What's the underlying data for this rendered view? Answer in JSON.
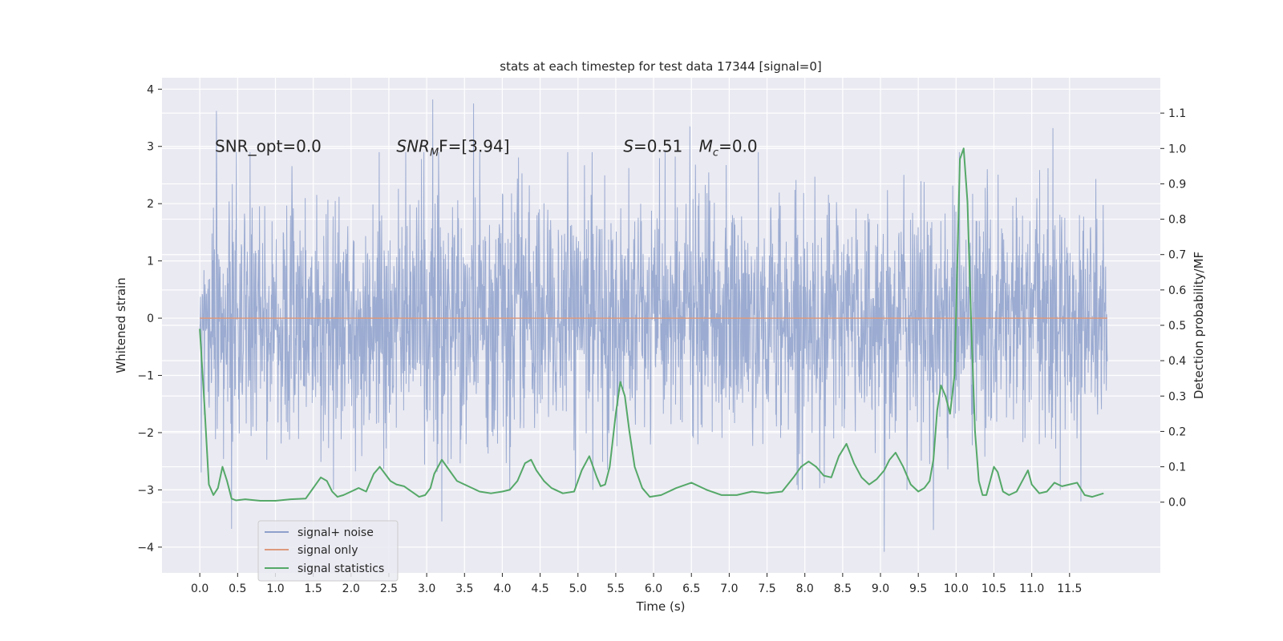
{
  "chart_data": {
    "type": "line",
    "title": "stats at each timestep for test data 17344 [signal=0]",
    "xlabel": "Time (s)",
    "ylabel_left": "Whitened strain",
    "ylabel_right": "Detection probability/MF",
    "xlim": [
      -0.5,
      12.7
    ],
    "ylim_left": [
      -4.45,
      4.2
    ],
    "ylim_right": [
      -0.2,
      1.2
    ],
    "x_ticks": [
      0.0,
      0.5,
      1.0,
      1.5,
      2.0,
      2.5,
      3.0,
      3.5,
      4.0,
      4.5,
      5.0,
      5.5,
      6.0,
      6.5,
      7.0,
      7.5,
      8.0,
      8.5,
      9.0,
      9.5,
      10.0,
      10.5,
      11.0,
      11.5
    ],
    "x_tick_labels": [
      "0.0",
      "0.5",
      "1.0",
      "1.5",
      "2.0",
      "2.5",
      "3.0",
      "3.5",
      "4.0",
      "4.5",
      "5.0",
      "5.5",
      "6.0",
      "6.5",
      "7.0",
      "7.5",
      "8.0",
      "8.5",
      "9.0",
      "9.5",
      "10.0",
      "10.5",
      "11.0",
      "11.5"
    ],
    "y_ticks_left": [
      -4,
      -3,
      -2,
      -1,
      0,
      1,
      2,
      3,
      4
    ],
    "y_tick_labels_left": [
      "−4",
      "−3",
      "−2",
      "−1",
      "0",
      "1",
      "2",
      "3",
      "4"
    ],
    "y_ticks_right": [
      0.0,
      0.1,
      0.2,
      0.3,
      0.4,
      0.5,
      0.6,
      0.7,
      0.8,
      0.9,
      1.0,
      1.1
    ],
    "y_tick_labels_right": [
      "0.0",
      "0.1",
      "0.2",
      "0.3",
      "0.4",
      "0.5",
      "0.6",
      "0.7",
      "0.8",
      "0.9",
      "1.0",
      "1.1"
    ],
    "grid": true,
    "legend_position": "lower-left",
    "annotations": [
      "SNR_opt=0.0",
      "SNR",
      "M",
      "F=[3.94]",
      "S",
      "=0.51",
      "M",
      "c",
      "=0.0"
    ],
    "annotation_positions": [
      0.2,
      2.6,
      5.6,
      6.6
    ],
    "series": [
      {
        "name": "signal+ noise",
        "axis": "left",
        "color": "#8da0cb",
        "style": "noise",
        "x_range": [
          0.0,
          12.0
        ],
        "y_range": [
          -4.1,
          3.85
        ],
        "peaks": [
          {
            "x": 0.22,
            "y": 3.62
          },
          {
            "x": 3.08,
            "y": 3.82
          },
          {
            "x": 3.62,
            "y": 3.75
          },
          {
            "x": 6.48,
            "y": 3.35
          },
          {
            "x": 11.28,
            "y": 3.32
          },
          {
            "x": 0.42,
            "y": -3.68
          },
          {
            "x": 3.2,
            "y": -3.55
          },
          {
            "x": 9.05,
            "y": -4.08
          },
          {
            "x": 9.7,
            "y": -3.7
          },
          {
            "x": 11.65,
            "y": -3.2
          }
        ]
      },
      {
        "name": "signal only",
        "axis": "left",
        "color": "#dd9a7e",
        "x": [
          0.0,
          12.0
        ],
        "y": [
          0.0,
          0.0
        ]
      },
      {
        "name": "signal statistics",
        "axis": "right",
        "color": "#55a868",
        "x": [
          0.0,
          0.06,
          0.12,
          0.18,
          0.24,
          0.3,
          0.36,
          0.42,
          0.48,
          0.6,
          0.8,
          1.0,
          1.2,
          1.4,
          1.5,
          1.6,
          1.68,
          1.75,
          1.82,
          1.9,
          2.0,
          2.1,
          2.2,
          2.3,
          2.38,
          2.45,
          2.52,
          2.6,
          2.7,
          2.8,
          2.9,
          2.98,
          3.05,
          3.1,
          3.2,
          3.3,
          3.4,
          3.55,
          3.7,
          3.85,
          4.0,
          4.1,
          4.2,
          4.3,
          4.38,
          4.45,
          4.55,
          4.65,
          4.8,
          4.95,
          5.05,
          5.15,
          5.25,
          5.3,
          5.36,
          5.42,
          5.5,
          5.56,
          5.62,
          5.68,
          5.75,
          5.85,
          5.95,
          6.1,
          6.3,
          6.5,
          6.7,
          6.9,
          7.1,
          7.3,
          7.5,
          7.7,
          7.85,
          7.95,
          8.05,
          8.15,
          8.25,
          8.35,
          8.45,
          8.55,
          8.65,
          8.75,
          8.85,
          8.95,
          9.05,
          9.12,
          9.2,
          9.3,
          9.4,
          9.5,
          9.58,
          9.65,
          9.7,
          9.75,
          9.8,
          9.86,
          9.92,
          9.98,
          10.05,
          10.1,
          10.15,
          10.2,
          10.25,
          10.3,
          10.35,
          10.4,
          10.45,
          10.5,
          10.55,
          10.62,
          10.7,
          10.8,
          10.9,
          10.95,
          11.0,
          11.1,
          11.2,
          11.3,
          11.4,
          11.5,
          11.6,
          11.7,
          11.8,
          11.95
        ],
        "y": [
          0.49,
          0.28,
          0.05,
          0.02,
          0.04,
          0.1,
          0.06,
          0.01,
          0.005,
          0.008,
          0.004,
          0.004,
          0.008,
          0.01,
          0.04,
          0.07,
          0.06,
          0.03,
          0.015,
          0.02,
          0.03,
          0.04,
          0.03,
          0.08,
          0.1,
          0.08,
          0.06,
          0.05,
          0.045,
          0.03,
          0.015,
          0.02,
          0.04,
          0.08,
          0.12,
          0.09,
          0.06,
          0.045,
          0.03,
          0.025,
          0.03,
          0.035,
          0.06,
          0.11,
          0.12,
          0.09,
          0.06,
          0.04,
          0.025,
          0.03,
          0.09,
          0.13,
          0.07,
          0.045,
          0.05,
          0.1,
          0.25,
          0.34,
          0.3,
          0.2,
          0.1,
          0.04,
          0.015,
          0.02,
          0.04,
          0.055,
          0.035,
          0.02,
          0.02,
          0.03,
          0.025,
          0.03,
          0.07,
          0.1,
          0.115,
          0.1,
          0.075,
          0.07,
          0.13,
          0.165,
          0.11,
          0.07,
          0.05,
          0.065,
          0.09,
          0.12,
          0.14,
          0.1,
          0.05,
          0.03,
          0.04,
          0.06,
          0.12,
          0.26,
          0.33,
          0.3,
          0.25,
          0.36,
          0.97,
          1.0,
          0.85,
          0.5,
          0.2,
          0.06,
          0.02,
          0.02,
          0.06,
          0.1,
          0.085,
          0.03,
          0.02,
          0.03,
          0.07,
          0.09,
          0.05,
          0.025,
          0.03,
          0.055,
          0.045,
          0.05,
          0.055,
          0.02,
          0.015,
          0.025
        ]
      }
    ]
  }
}
